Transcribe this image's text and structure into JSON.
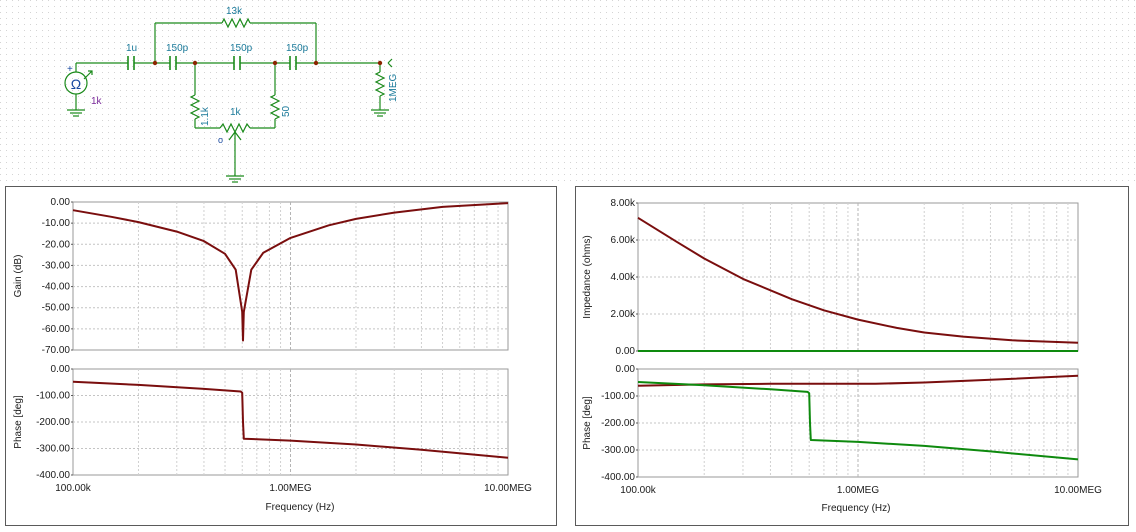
{
  "schematic": {
    "components": {
      "source_symbol": "Ω",
      "source_value": "1k",
      "c_in": "1u",
      "r_top": "13k",
      "c1": "150p",
      "c2": "150p",
      "c3": "150p",
      "r_left": "1.1k",
      "r_right": "50",
      "pot": "1k",
      "r_load": "1MEG",
      "wiper_mark": "o",
      "plus_mark": "+"
    },
    "colors": {
      "wire": "#1a8a1a",
      "label": "#1a7a9a",
      "node": "#8b2500"
    }
  },
  "chart_data": [
    {
      "id": "gain",
      "type": "line",
      "xscale": "log",
      "xlim": [
        100000,
        10000000
      ],
      "xticks": [
        "100.00k",
        "1.00MEG",
        "10.00MEG"
      ],
      "xlabel": "Frequency (Hz)",
      "ylabel": "Gain (dB)",
      "ylim": [
        -70,
        0
      ],
      "yticks": [
        "0.00",
        "-10.00",
        "-20.00",
        "-30.00",
        "-40.00",
        "-50.00",
        "-60.00",
        "-70.00"
      ],
      "grid": true,
      "series": [
        {
          "color": "#7a0e0e",
          "x": [
            100000,
            150000,
            200000,
            300000,
            400000,
            500000,
            560000,
            600000,
            605000,
            610000,
            660000,
            750000,
            1000000,
            1500000,
            2000000,
            3000000,
            5000000,
            10000000
          ],
          "y": [
            -3.9,
            -7.0,
            -9.5,
            -14.0,
            -18.5,
            -24.5,
            -32.0,
            -52.0,
            -65.5,
            -52.0,
            -32.0,
            -24.0,
            -17.0,
            -11.0,
            -8.0,
            -5.0,
            -2.3,
            -0.5
          ]
        }
      ]
    },
    {
      "id": "phase-left",
      "type": "line",
      "xscale": "log",
      "xlim": [
        100000,
        10000000
      ],
      "xticks": [
        "100.00k",
        "1.00MEG",
        "10.00MEG"
      ],
      "xlabel": "Frequency (Hz)",
      "ylabel": "Phase [deg]",
      "ylim": [
        -400,
        0
      ],
      "yticks": [
        "0.00",
        "-100.00",
        "-200.00",
        "-300.00",
        "-400.00"
      ],
      "grid": true,
      "series": [
        {
          "color": "#7a0e0e",
          "x": [
            100000,
            200000,
            400000,
            590000,
            600000,
            605000,
            610000,
            1000000,
            2000000,
            4000000,
            10000000
          ],
          "y": [
            -48,
            -60,
            -75,
            -85,
            -90,
            -200,
            -263,
            -270,
            -285,
            -305,
            -335
          ]
        }
      ]
    },
    {
      "id": "impedance",
      "type": "line",
      "xscale": "log",
      "xlim": [
        100000,
        10000000
      ],
      "xticks": [
        "100.00k",
        "1.00MEG",
        "10.00MEG"
      ],
      "xlabel": "Frequency (Hz)",
      "ylabel": "Impedance (ohms)",
      "ylim": [
        0,
        8000
      ],
      "yticks": [
        "8.00k",
        "6.00k",
        "4.00k",
        "2.00k",
        "0.00"
      ],
      "grid": true,
      "series": [
        {
          "color": "#7a0e0e",
          "x": [
            100000,
            150000,
            200000,
            300000,
            500000,
            700000,
            1000000,
            1500000,
            2000000,
            3000000,
            5000000,
            10000000
          ],
          "y": [
            7200,
            5900,
            5000,
            3900,
            2800,
            2200,
            1700,
            1250,
            1000,
            780,
            580,
            450
          ]
        },
        {
          "color": "#0e8a0e",
          "x": [
            100000,
            10000000
          ],
          "y": [
            0,
            0
          ]
        }
      ]
    },
    {
      "id": "phase-right",
      "type": "line",
      "xscale": "log",
      "xlim": [
        100000,
        10000000
      ],
      "xticks": [
        "100.00k",
        "1.00MEG",
        "10.00MEG"
      ],
      "xlabel": "Frequency (Hz)",
      "ylabel": "Phase [deg]",
      "ylim": [
        -400,
        0
      ],
      "yticks": [
        "0.00",
        "-100.00",
        "-200.00",
        "-300.00",
        "-400.00"
      ],
      "grid": true,
      "series": [
        {
          "color": "#7a0e0e",
          "x": [
            100000,
            200000,
            400000,
            800000,
            1200000,
            2000000,
            4000000,
            10000000
          ],
          "y": [
            -62,
            -57,
            -55,
            -55,
            -55,
            -50,
            -40,
            -25
          ]
        },
        {
          "color": "#0e8a0e",
          "x": [
            100000,
            200000,
            400000,
            590000,
            600000,
            605000,
            610000,
            1000000,
            2000000,
            4000000,
            10000000
          ],
          "y": [
            -48,
            -60,
            -75,
            -85,
            -90,
            -200,
            -263,
            -270,
            -285,
            -305,
            -335
          ]
        }
      ]
    }
  ]
}
